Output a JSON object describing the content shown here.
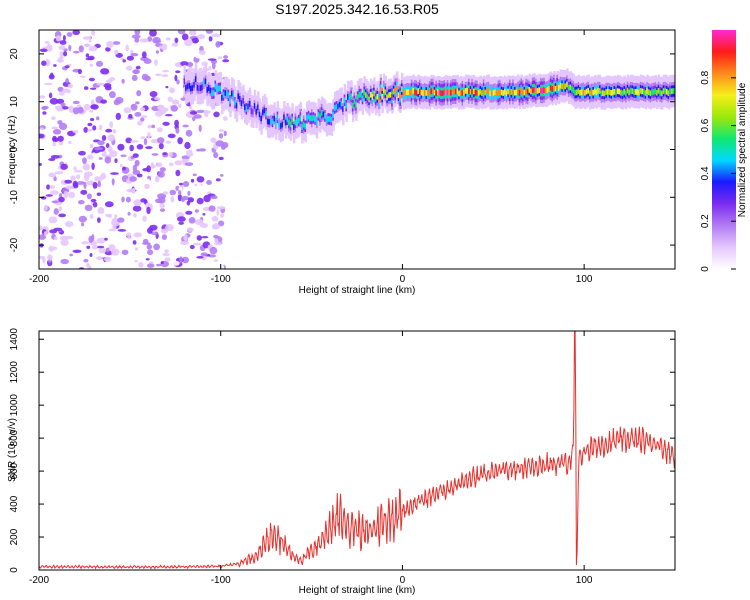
{
  "title": "S197.2025.342.16.53.R05",
  "colors": {
    "snr_line": "#e8302c",
    "colormap": [
      "#ffffff",
      "#e5c7ff",
      "#b27cf4",
      "#7d2cf0",
      "#1a1aff",
      "#00d9ff",
      "#10e870",
      "#9be80a",
      "#f6ef1a",
      "#ff8a1a",
      "#ff1a1a",
      "#ff2ad4"
    ]
  },
  "chart_data": [
    {
      "type": "heatmap",
      "title": "",
      "xlabel": "Height of straight line (km)",
      "ylabel": "Frequency (Hz)",
      "xlim": [
        -200,
        150
      ],
      "ylim": [
        -25,
        25
      ],
      "xticks": [
        -200,
        -100,
        0,
        100
      ],
      "yticks": [
        -20,
        -10,
        0,
        10,
        20
      ],
      "colorbar": {
        "label": "Normalized spectral amplitude",
        "range": [
          0,
          1
        ],
        "ticks": [
          0,
          0.2,
          0.4,
          0.6,
          0.8
        ]
      },
      "ridge": {
        "x": [
          -120,
          -110,
          -100,
          -90,
          -80,
          -70,
          -60,
          -50,
          -40,
          -30,
          -20,
          -10,
          0,
          10,
          20,
          40,
          60,
          80,
          85,
          90,
          95,
          100,
          120,
          150
        ],
        "freq": [
          14,
          13.5,
          12,
          10,
          8,
          6,
          5.5,
          6,
          7,
          10,
          11,
          11.5,
          12,
          12,
          12,
          12,
          12,
          12.5,
          13,
          13.5,
          12,
          12,
          12,
          12
        ],
        "amplitude": [
          0.3,
          0.35,
          0.4,
          0.35,
          0.35,
          0.4,
          0.45,
          0.5,
          0.4,
          0.45,
          0.6,
          0.75,
          0.8,
          0.85,
          0.9,
          0.8,
          0.75,
          0.9,
          0.8,
          0.7,
          0.6,
          0.7,
          0.65,
          0.6
        ]
      },
      "noise_region": {
        "x_from": -200,
        "x_to": -97,
        "max_amplitude": 0.3
      }
    },
    {
      "type": "line",
      "title": "",
      "xlabel": "Height of straight line (km)",
      "ylabel": "SNR (10 * v/v)",
      "xlim": [
        -200,
        150
      ],
      "ylim": [
        0,
        1450
      ],
      "xticks": [
        -200,
        -100,
        0,
        100
      ],
      "yticks": [
        0,
        200,
        400,
        600,
        800,
        1000,
        1200,
        1400
      ],
      "series": [
        {
          "name": "",
          "x": [
            -200,
            -180,
            -160,
            -140,
            -120,
            -100,
            -90,
            -80,
            -75,
            -70,
            -65,
            -60,
            -55,
            -50,
            -45,
            -40,
            -35,
            -30,
            -25,
            -20,
            -10,
            0,
            10,
            20,
            30,
            40,
            50,
            60,
            70,
            80,
            90,
            92,
            94,
            95,
            96,
            97,
            100,
            110,
            120,
            130,
            140,
            150
          ],
          "y": [
            20,
            20,
            18,
            18,
            20,
            22,
            40,
            90,
            170,
            240,
            150,
            80,
            60,
            120,
            170,
            260,
            320,
            280,
            250,
            220,
            300,
            360,
            420,
            470,
            520,
            560,
            590,
            610,
            630,
            640,
            650,
            660,
            700,
            1450,
            30,
            680,
            720,
            760,
            790,
            790,
            770,
            690
          ]
        }
      ]
    }
  ]
}
